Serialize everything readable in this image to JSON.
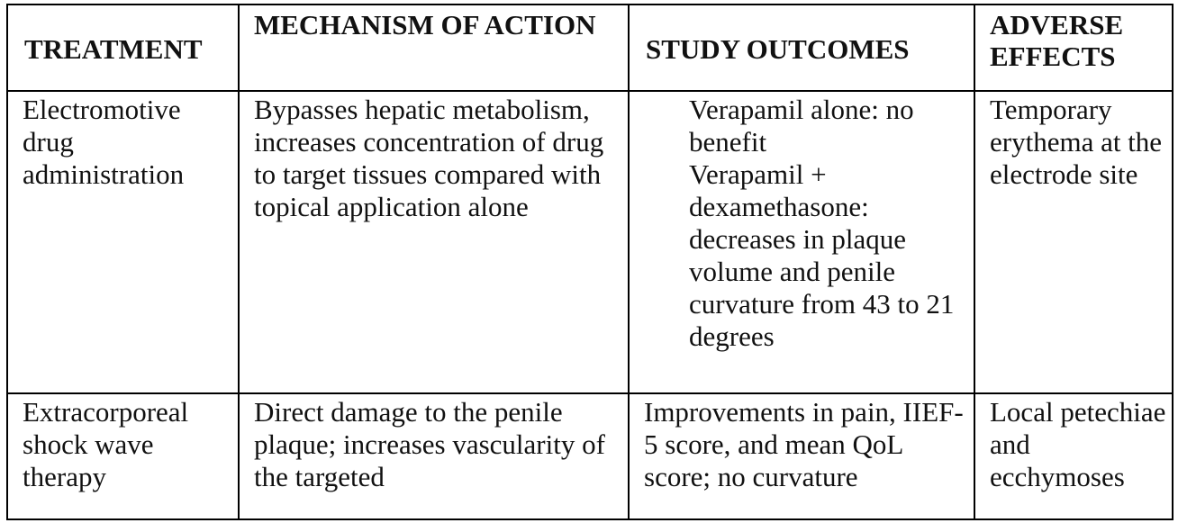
{
  "table": {
    "headers": [
      "TREATMENT",
      "MECHANISM OF ACTION",
      "STUDY OUTCOMES",
      "ADVERSE EFFECTS"
    ],
    "rows": [
      {
        "treatment": "Electromotive drug administration",
        "mechanism": "Bypasses hepatic metabolism, increases concentration of drug to target tissues compared with topical application alone",
        "outcomes": [
          "Verapamil alone: no benefit",
          "Verapamil + dexamethasone: decreases in plaque volume and penile curvature from 43 to 21 degrees"
        ],
        "adverse": "Temporary erythema at the electrode site"
      },
      {
        "treatment": "Extracorporeal shock wave therapy",
        "mechanism": "Direct damage to the penile plaque; increases vascularity of the targeted",
        "outcomes": [
          "Improvements in pain, IIEF-5 score, and mean QoL score; no curvature"
        ],
        "adverse": "Local petechiae and ecchymoses"
      }
    ]
  }
}
